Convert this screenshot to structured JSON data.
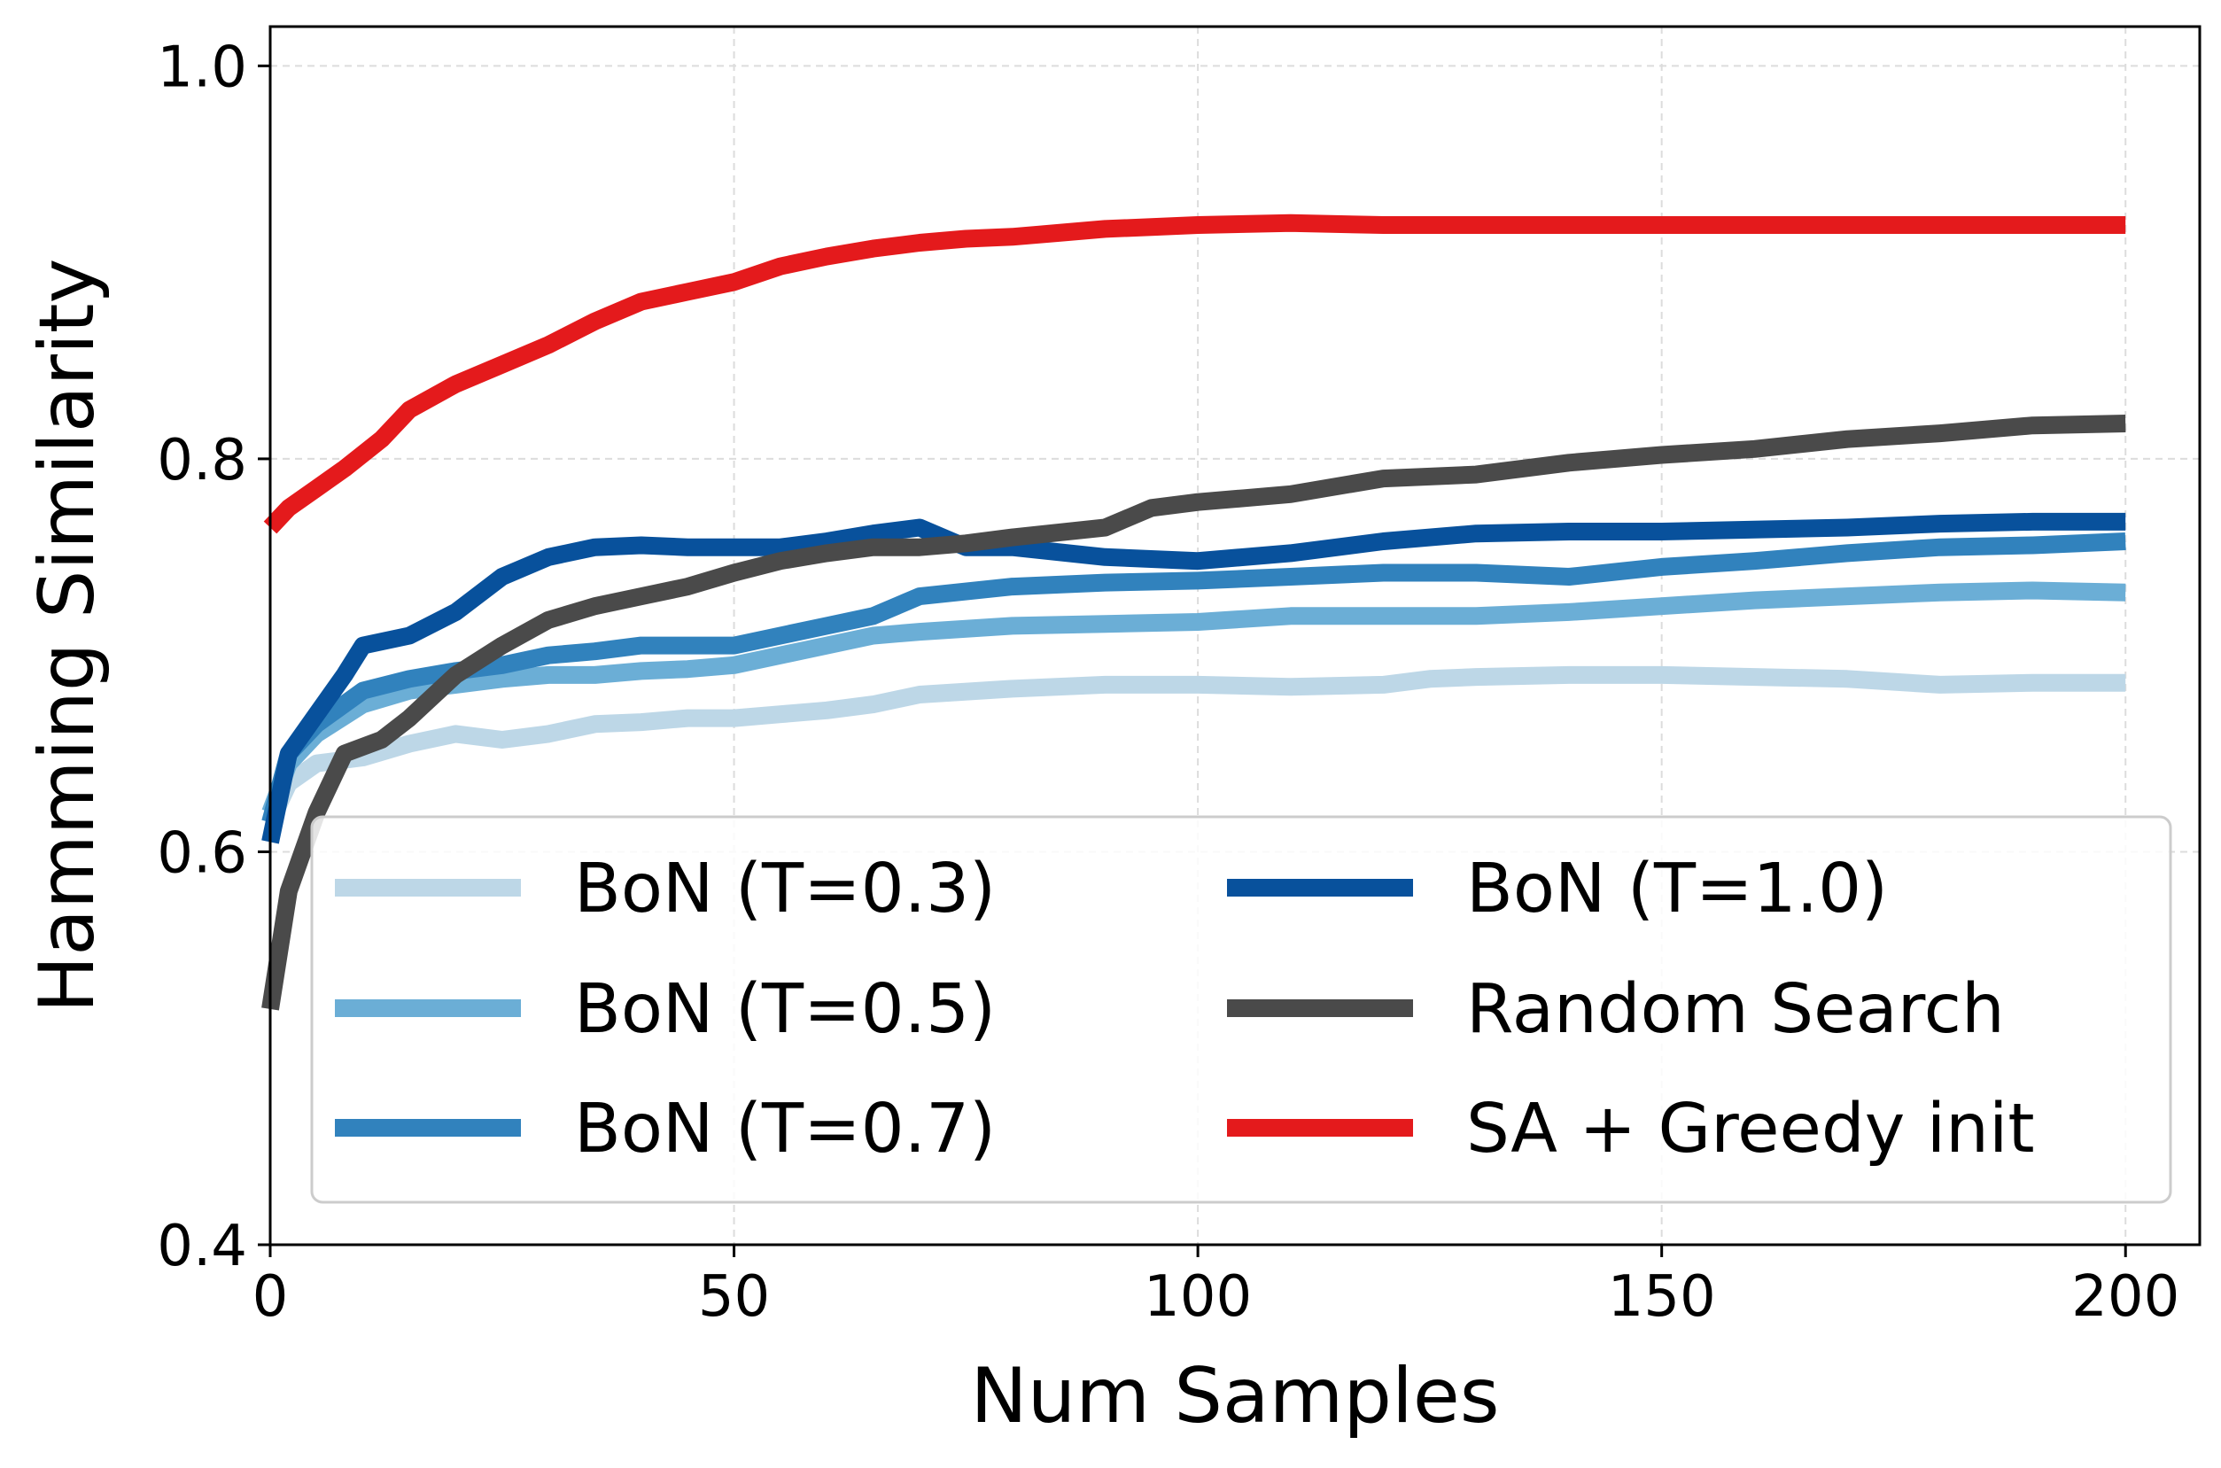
{
  "chart_data": {
    "type": "line",
    "title": "",
    "xlabel": "Num Samples",
    "ylabel": "Hamming Similarity",
    "xlim": [
      0,
      208
    ],
    "ylim": [
      0.4,
      1.02
    ],
    "xticks": [
      0,
      50,
      100,
      150,
      200
    ],
    "yticks": [
      0.4,
      0.6,
      0.8,
      1.0
    ],
    "xtick_labels": [
      "0",
      "50",
      "100",
      "150",
      "200"
    ],
    "ytick_labels": [
      "0.4",
      "0.6",
      "0.8",
      "1.0"
    ],
    "grid": true,
    "legend_position": "lower-right",
    "series": [
      {
        "name": "BoN (T=0.3)",
        "color": "#bdd7e7",
        "points": [
          [
            0,
            0.615
          ],
          [
            2,
            0.635
          ],
          [
            5,
            0.645
          ],
          [
            10,
            0.648
          ],
          [
            15,
            0.655
          ],
          [
            20,
            0.66
          ],
          [
            25,
            0.657
          ],
          [
            30,
            0.66
          ],
          [
            35,
            0.665
          ],
          [
            40,
            0.666
          ],
          [
            45,
            0.668
          ],
          [
            50,
            0.668
          ],
          [
            55,
            0.67
          ],
          [
            60,
            0.672
          ],
          [
            65,
            0.675
          ],
          [
            70,
            0.68
          ],
          [
            80,
            0.683
          ],
          [
            90,
            0.685
          ],
          [
            100,
            0.685
          ],
          [
            110,
            0.684
          ],
          [
            120,
            0.685
          ],
          [
            125,
            0.688
          ],
          [
            130,
            0.689
          ],
          [
            140,
            0.69
          ],
          [
            150,
            0.69
          ],
          [
            160,
            0.689
          ],
          [
            170,
            0.688
          ],
          [
            180,
            0.685
          ],
          [
            190,
            0.686
          ],
          [
            200,
            0.686
          ]
        ]
      },
      {
        "name": "BoN (T=0.5)",
        "color": "#6baed6",
        "points": [
          [
            0,
            0.62
          ],
          [
            2,
            0.645
          ],
          [
            5,
            0.66
          ],
          [
            10,
            0.675
          ],
          [
            15,
            0.682
          ],
          [
            20,
            0.685
          ],
          [
            25,
            0.688
          ],
          [
            30,
            0.69
          ],
          [
            35,
            0.69
          ],
          [
            40,
            0.692
          ],
          [
            45,
            0.693
          ],
          [
            50,
            0.695
          ],
          [
            55,
            0.7
          ],
          [
            60,
            0.705
          ],
          [
            65,
            0.71
          ],
          [
            70,
            0.712
          ],
          [
            80,
            0.715
          ],
          [
            90,
            0.716
          ],
          [
            100,
            0.717
          ],
          [
            110,
            0.72
          ],
          [
            120,
            0.72
          ],
          [
            130,
            0.72
          ],
          [
            140,
            0.722
          ],
          [
            150,
            0.725
          ],
          [
            160,
            0.728
          ],
          [
            170,
            0.73
          ],
          [
            180,
            0.732
          ],
          [
            190,
            0.733
          ],
          [
            200,
            0.732
          ]
        ]
      },
      {
        "name": "BoN (T=0.7)",
        "color": "#3182bd",
        "points": [
          [
            0,
            0.615
          ],
          [
            2,
            0.65
          ],
          [
            5,
            0.665
          ],
          [
            10,
            0.682
          ],
          [
            15,
            0.688
          ],
          [
            20,
            0.692
          ],
          [
            25,
            0.695
          ],
          [
            30,
            0.7
          ],
          [
            35,
            0.702
          ],
          [
            40,
            0.705
          ],
          [
            45,
            0.705
          ],
          [
            50,
            0.705
          ],
          [
            55,
            0.71
          ],
          [
            60,
            0.715
          ],
          [
            65,
            0.72
          ],
          [
            70,
            0.73
          ],
          [
            80,
            0.735
          ],
          [
            90,
            0.737
          ],
          [
            100,
            0.738
          ],
          [
            110,
            0.74
          ],
          [
            120,
            0.742
          ],
          [
            130,
            0.742
          ],
          [
            140,
            0.74
          ],
          [
            150,
            0.745
          ],
          [
            160,
            0.748
          ],
          [
            170,
            0.752
          ],
          [
            180,
            0.755
          ],
          [
            190,
            0.756
          ],
          [
            200,
            0.758
          ]
        ]
      },
      {
        "name": "BoN (T=1.0)",
        "color": "#08519c",
        "points": [
          [
            0,
            0.605
          ],
          [
            2,
            0.65
          ],
          [
            5,
            0.67
          ],
          [
            8,
            0.69
          ],
          [
            10,
            0.705
          ],
          [
            15,
            0.71
          ],
          [
            20,
            0.722
          ],
          [
            25,
            0.74
          ],
          [
            30,
            0.75
          ],
          [
            35,
            0.755
          ],
          [
            40,
            0.756
          ],
          [
            45,
            0.755
          ],
          [
            50,
            0.755
          ],
          [
            55,
            0.755
          ],
          [
            60,
            0.758
          ],
          [
            65,
            0.762
          ],
          [
            70,
            0.765
          ],
          [
            75,
            0.755
          ],
          [
            80,
            0.755
          ],
          [
            90,
            0.75
          ],
          [
            100,
            0.748
          ],
          [
            110,
            0.752
          ],
          [
            120,
            0.758
          ],
          [
            130,
            0.762
          ],
          [
            140,
            0.763
          ],
          [
            150,
            0.763
          ],
          [
            160,
            0.764
          ],
          [
            170,
            0.765
          ],
          [
            180,
            0.767
          ],
          [
            190,
            0.768
          ],
          [
            200,
            0.768
          ]
        ]
      },
      {
        "name": "Random Search",
        "color": "#4a4a4a",
        "points": [
          [
            0,
            0.52
          ],
          [
            2,
            0.58
          ],
          [
            5,
            0.62
          ],
          [
            8,
            0.65
          ],
          [
            12,
            0.657
          ],
          [
            15,
            0.668
          ],
          [
            20,
            0.69
          ],
          [
            25,
            0.705
          ],
          [
            30,
            0.718
          ],
          [
            35,
            0.725
          ],
          [
            40,
            0.73
          ],
          [
            45,
            0.735
          ],
          [
            50,
            0.742
          ],
          [
            55,
            0.748
          ],
          [
            60,
            0.752
          ],
          [
            65,
            0.755
          ],
          [
            70,
            0.755
          ],
          [
            75,
            0.757
          ],
          [
            80,
            0.76
          ],
          [
            90,
            0.765
          ],
          [
            95,
            0.775
          ],
          [
            100,
            0.778
          ],
          [
            105,
            0.78
          ],
          [
            110,
            0.782
          ],
          [
            120,
            0.79
          ],
          [
            130,
            0.792
          ],
          [
            140,
            0.798
          ],
          [
            150,
            0.802
          ],
          [
            160,
            0.805
          ],
          [
            170,
            0.81
          ],
          [
            180,
            0.813
          ],
          [
            190,
            0.817
          ],
          [
            200,
            0.818
          ]
        ]
      },
      {
        "name": "SA + Greedy init",
        "color": "#e41a1c",
        "points": [
          [
            0,
            0.765
          ],
          [
            2,
            0.775
          ],
          [
            5,
            0.785
          ],
          [
            8,
            0.795
          ],
          [
            12,
            0.81
          ],
          [
            15,
            0.825
          ],
          [
            20,
            0.838
          ],
          [
            25,
            0.848
          ],
          [
            30,
            0.858
          ],
          [
            35,
            0.87
          ],
          [
            40,
            0.88
          ],
          [
            45,
            0.885
          ],
          [
            50,
            0.89
          ],
          [
            55,
            0.898
          ],
          [
            60,
            0.903
          ],
          [
            65,
            0.907
          ],
          [
            70,
            0.91
          ],
          [
            75,
            0.912
          ],
          [
            80,
            0.913
          ],
          [
            85,
            0.915
          ],
          [
            90,
            0.917
          ],
          [
            95,
            0.918
          ],
          [
            100,
            0.919
          ],
          [
            110,
            0.92
          ],
          [
            120,
            0.919
          ],
          [
            130,
            0.919
          ],
          [
            150,
            0.919
          ],
          [
            175,
            0.919
          ],
          [
            200,
            0.919
          ]
        ]
      }
    ]
  }
}
